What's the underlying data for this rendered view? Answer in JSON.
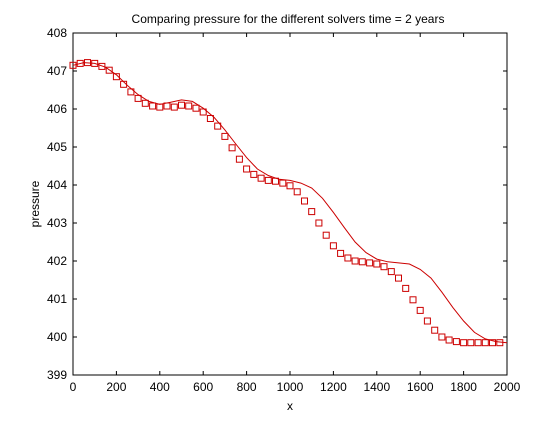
{
  "chart_data": {
    "type": "line",
    "title": "Comparing pressure for the different solvers time = 2 years",
    "xlabel": "x",
    "ylabel": "pressure",
    "xlim": [
      0,
      2000
    ],
    "ylim": [
      399,
      408
    ],
    "xticks": [
      0,
      200,
      400,
      600,
      800,
      1000,
      1200,
      1400,
      1600,
      1800,
      2000
    ],
    "yticks": [
      399,
      400,
      401,
      402,
      403,
      404,
      405,
      406,
      407,
      408
    ],
    "grid": false,
    "legend": "none",
    "series": [
      {
        "style": "solid-line",
        "color": "#cc0000",
        "x": [
          0,
          50,
          100,
          150,
          200,
          250,
          300,
          350,
          400,
          450,
          500,
          550,
          600,
          650,
          700,
          750,
          800,
          850,
          900,
          950,
          1000,
          1050,
          1100,
          1150,
          1200,
          1250,
          1300,
          1350,
          1400,
          1450,
          1500,
          1550,
          1600,
          1650,
          1700,
          1750,
          1800,
          1850,
          1900,
          1950,
          2000
        ],
        "y": [
          407.15,
          407.22,
          407.2,
          407.1,
          406.9,
          406.62,
          406.38,
          406.2,
          406.12,
          406.18,
          406.24,
          406.2,
          406.02,
          405.78,
          405.45,
          405.08,
          404.72,
          404.42,
          404.25,
          404.15,
          404.12,
          404.05,
          403.92,
          403.65,
          403.28,
          402.88,
          402.5,
          402.22,
          402.05,
          401.98,
          401.95,
          401.92,
          401.78,
          401.55,
          401.18,
          400.78,
          400.42,
          400.12,
          399.95,
          399.88,
          399.85
        ]
      },
      {
        "style": "square-markers",
        "color": "#cc0000",
        "x": [
          0,
          33,
          67,
          100,
          133,
          167,
          200,
          233,
          267,
          300,
          333,
          367,
          400,
          433,
          467,
          500,
          533,
          567,
          600,
          633,
          667,
          700,
          733,
          767,
          800,
          833,
          867,
          900,
          933,
          967,
          1000,
          1033,
          1067,
          1100,
          1133,
          1167,
          1200,
          1233,
          1267,
          1300,
          1333,
          1367,
          1400,
          1433,
          1467,
          1500,
          1533,
          1567,
          1600,
          1633,
          1667,
          1700,
          1733,
          1767,
          1800,
          1833,
          1867,
          1900,
          1933,
          1967
        ],
        "y": [
          407.15,
          407.2,
          407.22,
          407.2,
          407.12,
          407.02,
          406.85,
          406.65,
          406.45,
          406.28,
          406.15,
          406.08,
          406.05,
          406.08,
          406.05,
          406.1,
          406.08,
          406.02,
          405.92,
          405.75,
          405.55,
          405.28,
          404.98,
          404.68,
          404.42,
          404.28,
          404.18,
          404.12,
          404.1,
          404.05,
          403.98,
          403.82,
          403.58,
          403.3,
          403.0,
          402.68,
          402.4,
          402.2,
          402.08,
          402.0,
          401.98,
          401.95,
          401.92,
          401.85,
          401.72,
          401.55,
          401.28,
          400.98,
          400.7,
          400.42,
          400.18,
          400.0,
          399.92,
          399.88,
          399.85,
          399.85,
          399.85,
          399.85,
          399.85,
          399.85
        ]
      }
    ]
  }
}
